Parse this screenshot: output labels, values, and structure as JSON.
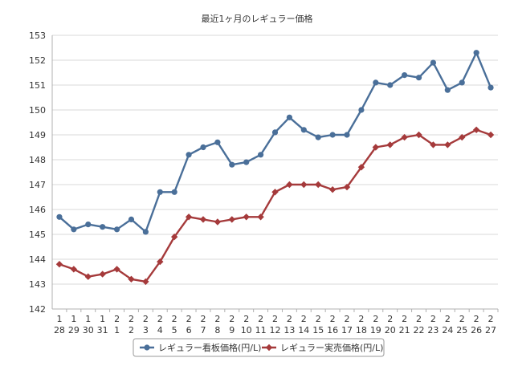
{
  "colors": {
    "series_1": "#4a6f99",
    "series_2": "#a53a3b",
    "grid": "#d9d9d9",
    "axis": "#b0b0b0",
    "legend_border": "#9a9a9a"
  },
  "chart_data": {
    "type": "line",
    "title": "最近1ヶ月のレギュラー価格",
    "xlabel": "",
    "ylabel": "",
    "ylim": [
      142,
      153
    ],
    "y_ticks": [
      142,
      143,
      144,
      145,
      146,
      147,
      148,
      149,
      150,
      151,
      152,
      153
    ],
    "grid": true,
    "legend_position": "bottom-center",
    "x": [
      {
        "month": "1",
        "day": "28"
      },
      {
        "month": "1",
        "day": "29"
      },
      {
        "month": "1",
        "day": "30"
      },
      {
        "month": "1",
        "day": "31"
      },
      {
        "month": "2",
        "day": "1"
      },
      {
        "month": "2",
        "day": "2"
      },
      {
        "month": "2",
        "day": "3"
      },
      {
        "month": "2",
        "day": "4"
      },
      {
        "month": "2",
        "day": "5"
      },
      {
        "month": "2",
        "day": "6"
      },
      {
        "month": "2",
        "day": "7"
      },
      {
        "month": "2",
        "day": "8"
      },
      {
        "month": "2",
        "day": "9"
      },
      {
        "month": "2",
        "day": "10"
      },
      {
        "month": "2",
        "day": "11"
      },
      {
        "month": "2",
        "day": "12"
      },
      {
        "month": "2",
        "day": "13"
      },
      {
        "month": "2",
        "day": "14"
      },
      {
        "month": "2",
        "day": "15"
      },
      {
        "month": "2",
        "day": "16"
      },
      {
        "month": "2",
        "day": "17"
      },
      {
        "month": "2",
        "day": "18"
      },
      {
        "month": "2",
        "day": "19"
      },
      {
        "month": "2",
        "day": "20"
      },
      {
        "month": "2",
        "day": "21"
      },
      {
        "month": "2",
        "day": "22"
      },
      {
        "month": "2",
        "day": "23"
      },
      {
        "month": "2",
        "day": "24"
      },
      {
        "month": "2",
        "day": "25"
      },
      {
        "month": "2",
        "day": "26"
      },
      {
        "month": "2",
        "day": "27"
      }
    ],
    "series": [
      {
        "name": "レギュラー看板価格(円/L)",
        "marker": "circle",
        "values": [
          145.7,
          145.2,
          145.4,
          145.3,
          145.2,
          145.6,
          145.1,
          146.7,
          146.7,
          148.2,
          148.5,
          148.7,
          147.8,
          147.9,
          148.2,
          149.1,
          149.7,
          149.2,
          148.9,
          149.0,
          149.0,
          150.0,
          151.1,
          151.0,
          151.4,
          151.3,
          151.9,
          150.8,
          151.1,
          152.3,
          150.9
        ]
      },
      {
        "name": "レギュラー実売価格(円/L)",
        "marker": "diamond",
        "values": [
          143.8,
          143.6,
          143.3,
          143.4,
          143.6,
          143.2,
          143.1,
          143.9,
          144.9,
          145.7,
          145.6,
          145.5,
          145.6,
          145.7,
          145.7,
          146.7,
          147.0,
          147.0,
          147.0,
          146.8,
          146.9,
          147.7,
          148.5,
          148.6,
          148.9,
          149.0,
          148.6,
          148.6,
          148.9,
          149.2,
          149.0
        ]
      }
    ]
  }
}
